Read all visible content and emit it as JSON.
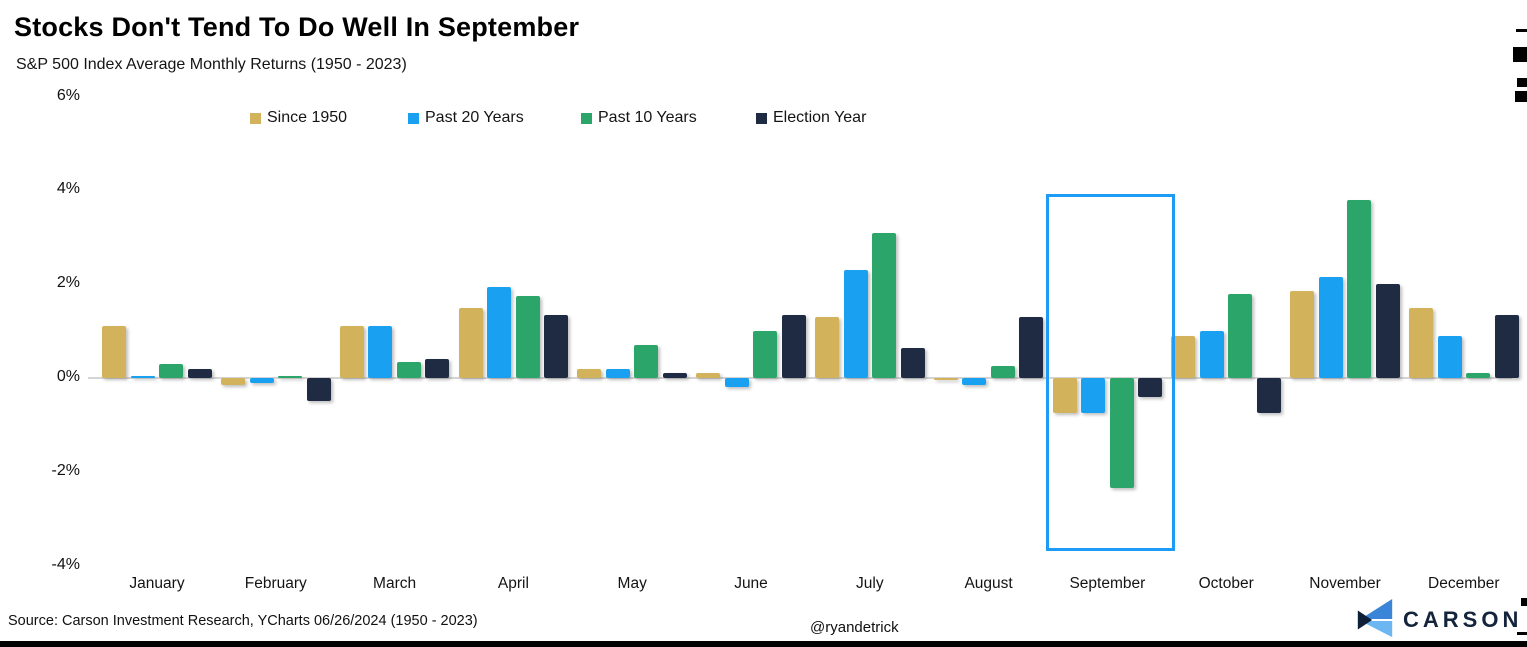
{
  "title": "Stocks Don't Tend To Do Well In September",
  "subtitle": "S&P 500 Index Average Monthly Returns (1950 - 2023)",
  "footer": {
    "source": "Source: Carson Investment Research, YCharts 06/26/2024 (1950 - 2023)",
    "handle": "@ryandetrick",
    "brand": "CARSON"
  },
  "chart_data": {
    "type": "bar",
    "title": "Stocks Don't Tend To Do Well In September",
    "subtitle": "S&P 500 Index Average Monthly Returns (1950 - 2023)",
    "categories": [
      "January",
      "February",
      "March",
      "April",
      "May",
      "June",
      "July",
      "August",
      "September",
      "October",
      "November",
      "December"
    ],
    "series": [
      {
        "name": "Since 1950",
        "color": "#d2b25a",
        "values": [
          1.1,
          -0.15,
          1.1,
          1.5,
          0.2,
          0.1,
          1.3,
          -0.05,
          -0.75,
          0.9,
          1.85,
          1.5
        ]
      },
      {
        "name": "Past 20 Years",
        "color": "#1aa0f0",
        "values": [
          0.05,
          -0.1,
          1.1,
          1.95,
          0.2,
          -0.2,
          2.3,
          -0.15,
          -0.75,
          1.0,
          2.15,
          0.9
        ]
      },
      {
        "name": "Past 10 Years",
        "color": "#2ba569",
        "values": [
          0.3,
          0.05,
          0.35,
          1.75,
          0.7,
          1.0,
          3.1,
          0.25,
          -2.35,
          1.8,
          3.8,
          0.1
        ]
      },
      {
        "name": "Election Year",
        "color": "#1e2b42",
        "values": [
          0.2,
          -0.5,
          0.4,
          1.35,
          0.1,
          1.35,
          0.65,
          1.3,
          -0.4,
          -0.75,
          2.0,
          1.35
        ]
      }
    ],
    "ylabel": "",
    "xlabel": "",
    "yticks": [
      6,
      4,
      2,
      0,
      -2,
      -4
    ],
    "ytick_suffix": "%",
    "ylim": [
      -4,
      6
    ],
    "grid": "zero-line-only",
    "legend_position": "top",
    "highlight_month": "September",
    "highlight_box_color": "#1e9bf5"
  },
  "colors": {
    "background": "#ffffff",
    "zero_line": "#d5d5d5",
    "text": "#111111",
    "brand_navy": "#14243c",
    "logo_blue_top": "#3a85d8",
    "logo_blue_bottom": "#6cb6f2"
  }
}
